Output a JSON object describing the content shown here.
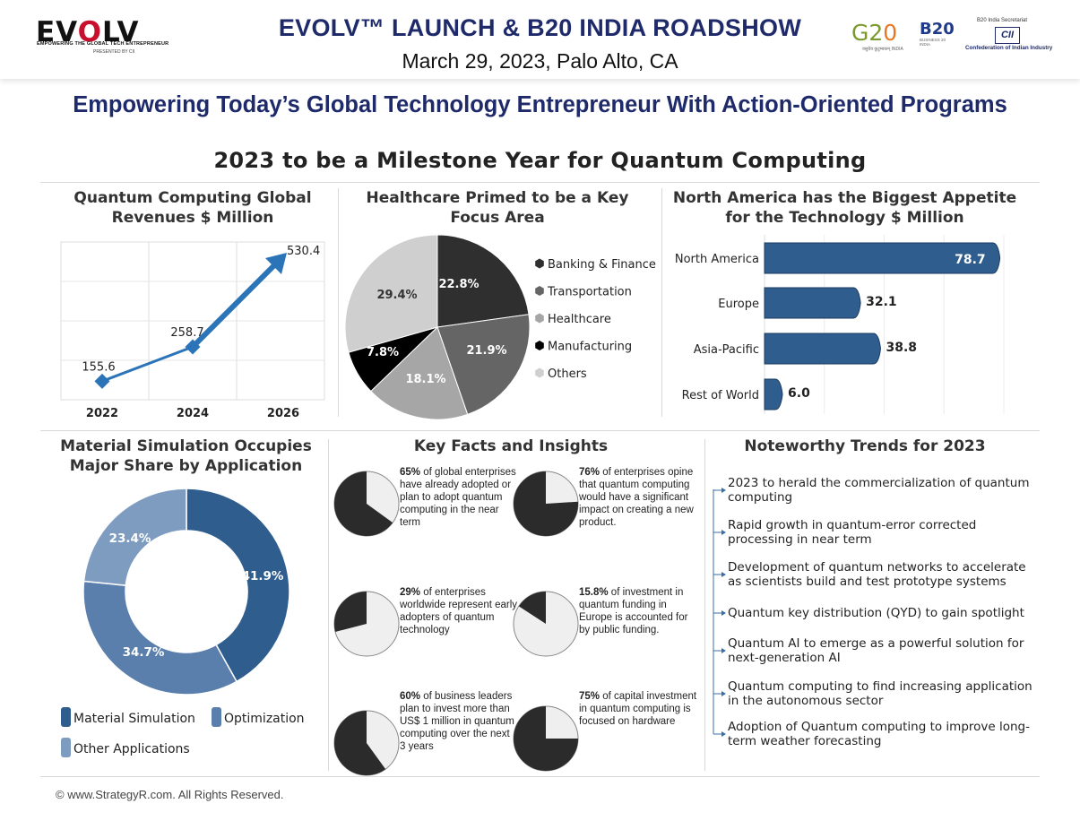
{
  "header": {
    "logo_text_1": "EV",
    "logo_text_2": "O",
    "logo_text_3": "LV",
    "logo_tagline": "EMPOWERING THE GLOBAL TECH ENTREPRENEUR",
    "logo_presented_by": "PRESENTED BY CII",
    "title": "EVOLV™ LAUNCH & B20 INDIA ROADSHOW",
    "date_location": "March 29, 2023, Palo Alto, CA",
    "g20_label_1": "G2",
    "g20_label_2": "0",
    "g20_sub": "वसुधैव कुटुम्बकम् INDIA",
    "b20_label": "B20",
    "b20_sub": "BUSINESS 20 INDIA",
    "cii_top": "B20 India Secretariat",
    "cii_logo": "CII",
    "cii_bottom": "Confederation of Indian Industry"
  },
  "subtitle": "Empowering Today’s Global Technology Entrepreneur With Action-Oriented Programs",
  "infographic_title": "2023 to be a Milestone Year for Quantum Computing",
  "panels": {
    "revenue_title_1": "Quantum Computing Global",
    "revenue_title_2": "Revenues $ Million",
    "healthcare_title_1": "Healthcare Primed to be a Key",
    "healthcare_title_2": "Focus Area",
    "na_title_1": "North America has the Biggest Appetite",
    "na_title_2": "for the Technology $ Million",
    "material_title_1": "Material Simulation Occupies",
    "material_title_2": "Major Share by Application",
    "facts_title": "Key Facts and Insights",
    "trends_title": "Noteworthy Trends for 2023"
  },
  "chart_data": [
    {
      "type": "line",
      "title": "Quantum Computing Global Revenues $ Million",
      "categories": [
        "2022",
        "2024",
        "2026"
      ],
      "values": [
        155.6,
        258.7,
        530.4
      ],
      "value_labels": [
        "155.6",
        "258.7",
        "530.4"
      ],
      "ylim": [
        0,
        600
      ],
      "grid": true,
      "color": "#2b74b8"
    },
    {
      "type": "pie",
      "title": "Healthcare Primed to be a Key Focus Area",
      "labels": [
        "Banking & Finance",
        "Transportation",
        "Healthcare",
        "Manufacturing",
        "Others"
      ],
      "values": [
        22.8,
        21.9,
        18.1,
        7.8,
        29.4
      ],
      "value_labels": [
        "22.8%",
        "21.9%",
        "18.1%",
        "7.8%",
        "29.4%"
      ],
      "colors": [
        "#2f2f2f",
        "#656565",
        "#a6a6a6",
        "#000000",
        "#cfcfcf"
      ],
      "legend": "right"
    },
    {
      "type": "bar",
      "orientation": "horizontal",
      "title": "North America has the Biggest Appetite for the Technology $ Million",
      "categories": [
        "North America",
        "Europe",
        "Asia-Pacific",
        "Rest of World"
      ],
      "values": [
        78.7,
        32.1,
        38.8,
        6.0
      ],
      "value_labels": [
        "78.7",
        "32.1",
        "38.8",
        "6.0"
      ],
      "xlim": [
        0,
        80
      ],
      "color": "#2f5d8e"
    },
    {
      "type": "pie",
      "subtype": "donut",
      "title": "Material Simulation Occupies Major Share by Application",
      "labels": [
        "Material Simulation",
        "Optimization",
        "Other Applications"
      ],
      "values": [
        41.9,
        34.7,
        23.4
      ],
      "value_labels": [
        "41.9%",
        "34.7%",
        "23.4%"
      ],
      "colors": [
        "#2f5d8e",
        "#5a7fac",
        "#7e9cc0"
      ],
      "legend": "bottom"
    }
  ],
  "facts": [
    {
      "pct": 65,
      "bold": "65%",
      "text": " of global enterprises have already adopted or plan to adopt quantum computing in the near term"
    },
    {
      "pct": 76,
      "bold": "76%",
      "text": " of enterprises opine that quantum computing would have a significant impact on creating a new product."
    },
    {
      "pct": 29,
      "bold": "29%",
      "text": " of enterprises worldwide represent early adopters of quantum technology"
    },
    {
      "pct": 15.8,
      "bold": "15.8%",
      "text": " of investment in quantum funding in Europe is accounted for by public funding."
    },
    {
      "pct": 60,
      "bold": "60%",
      "text": " of business leaders plan to invest more than US$ 1 million in quantum computing over the next 3 years"
    },
    {
      "pct": 75,
      "bold": "75%",
      "text": " of capital investment in quantum computing is focused on hardware"
    }
  ],
  "trends": [
    "2023 to herald the commercialization of quantum computing",
    "Rapid growth in quantum-error corrected processing in near term",
    "Development of quantum networks to accelerate as scientists build and test prototype systems",
    "Quantum key distribution (QYD) to gain spotlight",
    "Quantum AI to emerge as a powerful solution for next-generation AI",
    "Quantum computing to find increasing application in the autonomous sector",
    "Adoption of Quantum computing to  improve long-term weather forecasting"
  ],
  "footer": {
    "copyright": "© www.StrategyR.com. All Rights Reserved."
  }
}
